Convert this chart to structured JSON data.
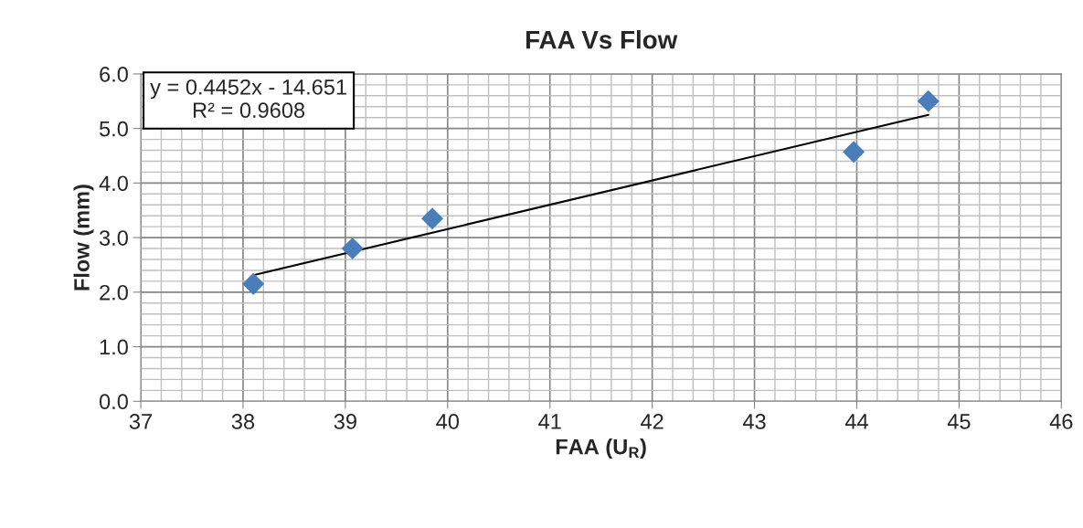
{
  "chart_data": {
    "type": "scatter",
    "title": "FAA Vs Flow",
    "xlabel": "FAA (U$_{R}$)",
    "ylabel": "Flow (mm)",
    "marker": "diamond",
    "grid": true,
    "legend": false,
    "xlim": [
      37,
      46
    ],
    "xticks": [
      37,
      38,
      39,
      40,
      41,
      42,
      43,
      44,
      45,
      46
    ],
    "ylim": [
      0,
      6
    ],
    "yticks": [
      {
        "value": 0,
        "label": "0.0"
      },
      {
        "value": 1,
        "label": "1.0"
      },
      {
        "value": 2,
        "label": "2.0"
      },
      {
        "value": 3,
        "label": "3.0"
      },
      {
        "value": 4,
        "label": "4.0"
      },
      {
        "value": 5,
        "label": "5.0"
      },
      {
        "value": 6,
        "label": "6.0"
      }
    ],
    "series": [
      {
        "color": "#4a7ebb",
        "x": [
          38.1,
          39.07,
          39.85,
          43.97,
          44.7
        ],
        "values": [
          2.15,
          2.8,
          3.35,
          4.57,
          5.5
        ]
      },
      {
        "type": "line",
        "color": "#000000",
        "marker": "none",
        "x": [
          38.1,
          44.7
        ],
        "values": [
          2.31,
          5.25
        ]
      }
    ],
    "annotations": [
      "y = 0.4452x - 14.651\nR² = 0.9608"
    ]
  }
}
